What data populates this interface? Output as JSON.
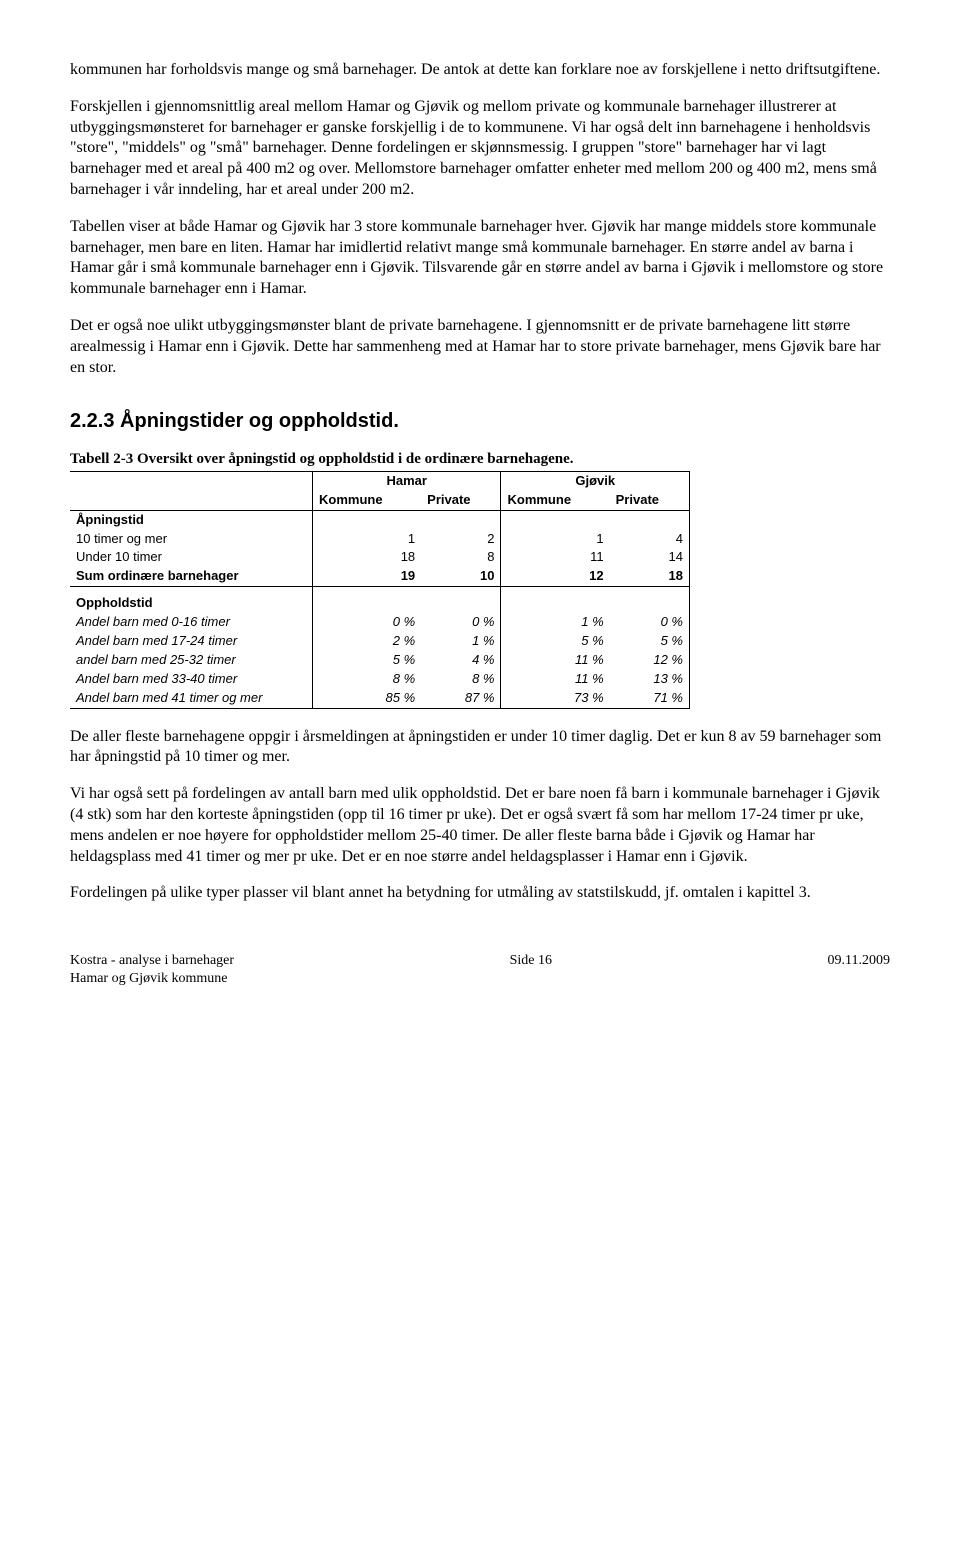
{
  "paragraphs": {
    "p1": "kommunen har forholdsvis mange og små barnehager. De antok at dette kan forklare noe av forskjellene i netto driftsutgiftene.",
    "p2": "Forskjellen i gjennomsnittlig areal mellom Hamar og Gjøvik og mellom private og kommunale barnehager illustrerer at utbyggingsmønsteret for barnehager er ganske forskjellig i de to kommunene. Vi har også delt inn barnehagene i henholdsvis \"store\", \"middels\" og \"små\" barnehager. Denne fordelingen er skjønnsmessig. I gruppen \"store\" barnehager har vi lagt barnehager med et areal på 400 m2 og over. Mellomstore barnehager omfatter enheter med mellom 200 og 400 m2, mens små barnehager i vår inndeling, har et areal under 200 m2.",
    "p3": "Tabellen viser at både Hamar og Gjøvik har 3 store kommunale barnehager hver. Gjøvik har mange middels store kommunale barnehager, men bare en liten. Hamar har imidlertid relativt mange små kommunale barnehager. En større andel av barna i Hamar går i små kommunale barnehager enn i Gjøvik. Tilsvarende går en større andel av barna i Gjøvik i mellomstore og store kommunale barnehager enn i Hamar.",
    "p4": "Det er også noe ulikt utbyggingsmønster blant de private barnehagene. I gjennomsnitt er de private barnehagene litt større arealmessig i Hamar enn i Gjøvik. Dette har sammenheng med at Hamar har to store private barnehager, mens Gjøvik bare har en stor.",
    "p5": "De aller fleste barnehagene oppgir i årsmeldingen at åpningstiden er under 10 timer daglig. Det er kun 8 av 59 barnehager som har åpningstid på 10 timer og mer.",
    "p6": "Vi har også sett på fordelingen av antall barn med ulik oppholdstid. Det er bare noen få barn i kommunale barnehager i Gjøvik (4 stk) som har den korteste åpningstiden (opp til 16 timer pr uke).  Det er også svært få som har mellom 17-24 timer pr uke, mens andelen er noe høyere for oppholdstider mellom 25-40 timer. De aller fleste barna både i Gjøvik og Hamar har heldagsplass med 41 timer og mer pr uke. Det er en noe større andel heldagsplasser i Hamar enn i Gjøvik.",
    "p7": "Fordelingen på ulike typer plasser vil blant annet ha betydning for utmåling av statstilskudd, jf. omtalen i kapittel 3."
  },
  "heading": "2.2.3  Åpningstider og oppholdstid.",
  "table": {
    "caption": "Tabell 2-3 Oversikt over åpningstid og oppholdstid i de ordinære barnehagene.",
    "group_headers": [
      "Hamar",
      "Gjøvik"
    ],
    "sub_headers": [
      "Kommune",
      "Private",
      "Kommune",
      "Private"
    ],
    "section1_label": "Åpningstid",
    "rows_section1": [
      {
        "label": "10 timer og mer",
        "v": [
          "1",
          "2",
          "1",
          "4"
        ]
      },
      {
        "label": "Under 10 timer",
        "v": [
          "18",
          "8",
          "11",
          "14"
        ]
      }
    ],
    "sum_row": {
      "label": "Sum ordinære barnehager",
      "v": [
        "19",
        "10",
        "12",
        "18"
      ]
    },
    "section2_label": "Oppholdstid",
    "rows_section2": [
      {
        "label": "Andel barn med 0-16 timer",
        "v": [
          "0 %",
          "0 %",
          "1 %",
          "0 %"
        ]
      },
      {
        "label": "Andel barn med 17-24 timer",
        "v": [
          "2 %",
          "1 %",
          "5 %",
          "5 %"
        ]
      },
      {
        "label": "andel barn med 25-32 timer",
        "v": [
          "5 %",
          "4 %",
          "11 %",
          "12 %"
        ]
      },
      {
        "label": "Andel barn med 33-40 timer",
        "v": [
          "8 %",
          "8 %",
          "11 %",
          "13 %"
        ]
      },
      {
        "label": "Andel barn med 41 timer og mer",
        "v": [
          "85 %",
          "87 %",
          "73 %",
          "71 %"
        ]
      }
    ]
  },
  "footer": {
    "left_line1": "Kostra - analyse i barnehager",
    "left_line2": "Hamar og Gjøvik kommune",
    "center": "Side 16",
    "right": "09.11.2009"
  }
}
